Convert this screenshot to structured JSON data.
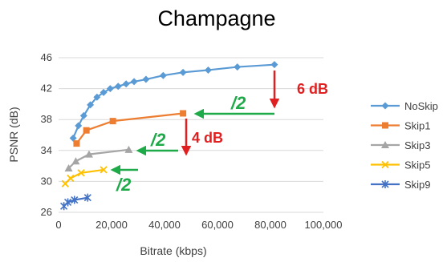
{
  "chart_data": {
    "type": "line",
    "title": "Champagne",
    "xlabel": "Bitrate (kbps)",
    "ylabel": "PSNR (dB)",
    "xlim": [
      0,
      100000
    ],
    "ylim": [
      26,
      46
    ],
    "x_ticks": [
      "0",
      "20,000",
      "40,000",
      "60,000",
      "80,000",
      "100,000"
    ],
    "y_ticks": [
      "26",
      "30",
      "34",
      "38",
      "42",
      "46"
    ],
    "grid": "horizontal",
    "legend_position": "right",
    "series": [
      {
        "name": "NoSkip",
        "color": "#5b9bd5",
        "marker": "diamond",
        "x": [
          5500,
          7500,
          9500,
          12000,
          14500,
          17000,
          19500,
          22500,
          25500,
          28500,
          33000,
          39500,
          47000,
          56500,
          67500,
          81500
        ],
        "y": [
          35.6,
          37.2,
          38.5,
          39.9,
          40.9,
          41.5,
          42.0,
          42.3,
          42.6,
          42.9,
          43.2,
          43.7,
          44.1,
          44.4,
          44.8,
          45.1
        ]
      },
      {
        "name": "Skip1",
        "color": "#ed7d31",
        "marker": "square",
        "x": [
          6800,
          10500,
          20500,
          47000
        ],
        "y": [
          34.9,
          36.6,
          37.8,
          38.8
        ]
      },
      {
        "name": "Skip3",
        "color": "#a5a5a5",
        "marker": "triangle",
        "x": [
          3800,
          6500,
          11500,
          26500
        ],
        "y": [
          31.7,
          32.6,
          33.5,
          34.1
        ]
      },
      {
        "name": "Skip5",
        "color": "#ffc000",
        "marker": "x",
        "x": [
          2500,
          4500,
          8500,
          17000
        ],
        "y": [
          29.7,
          30.4,
          31.1,
          31.5
        ]
      },
      {
        "name": "Skip9",
        "color": "#4472c4",
        "marker": "star",
        "x": [
          2000,
          3500,
          6000,
          11000
        ],
        "y": [
          26.8,
          27.3,
          27.6,
          27.9
        ]
      }
    ],
    "annotations": [
      {
        "text": "6 dB",
        "color": "#e02020"
      },
      {
        "text": "4 dB",
        "color": "#e02020"
      },
      {
        "text": "/2",
        "color": "#1faa4a"
      },
      {
        "text": "/2",
        "color": "#1faa4a"
      },
      {
        "text": "/2",
        "color": "#1faa4a"
      }
    ]
  }
}
